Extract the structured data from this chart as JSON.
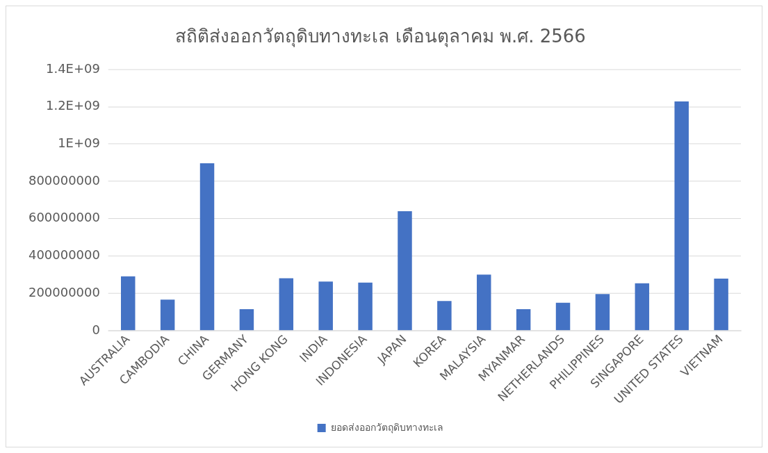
{
  "chart_data": {
    "type": "bar",
    "title": "สถิติส่งออกวัตถุดิบทางทะเล เดือนตุลาคม พ.ศ. 2566",
    "categories": [
      "AUSTRALIA",
      "CAMBODIA",
      "CHINA",
      "GERMANY",
      "HONG KONG",
      "INDIA",
      "INDONESIA",
      "JAPAN",
      "KOREA",
      "MALAYSIA",
      "MYANMAR",
      "NETHERLANDS",
      "PHILIPPINES",
      "SINGAPORE",
      "UNITED STATES",
      "VIETNAM"
    ],
    "series": [
      {
        "name": "ยอดส่งออกวัตถุดิบทางทะเล",
        "color": "#4472c4",
        "values": [
          291000000,
          166000000,
          897000000,
          115000000,
          281000000,
          263000000,
          257000000,
          640000000,
          159000000,
          300000000,
          115000000,
          149000000,
          196000000,
          254000000,
          1228000000,
          279000000
        ]
      }
    ],
    "ylim": [
      0,
      1400000000
    ],
    "yticks": [
      0,
      200000000,
      400000000,
      600000000,
      800000000,
      {
        "value": 1000000000,
        "label": "1E+09"
      },
      {
        "value": 1200000000,
        "label": "1.2E+09"
      },
      {
        "value": 1400000000,
        "label": "1.4E+09"
      }
    ],
    "grid": "y",
    "legend": "bottom"
  }
}
